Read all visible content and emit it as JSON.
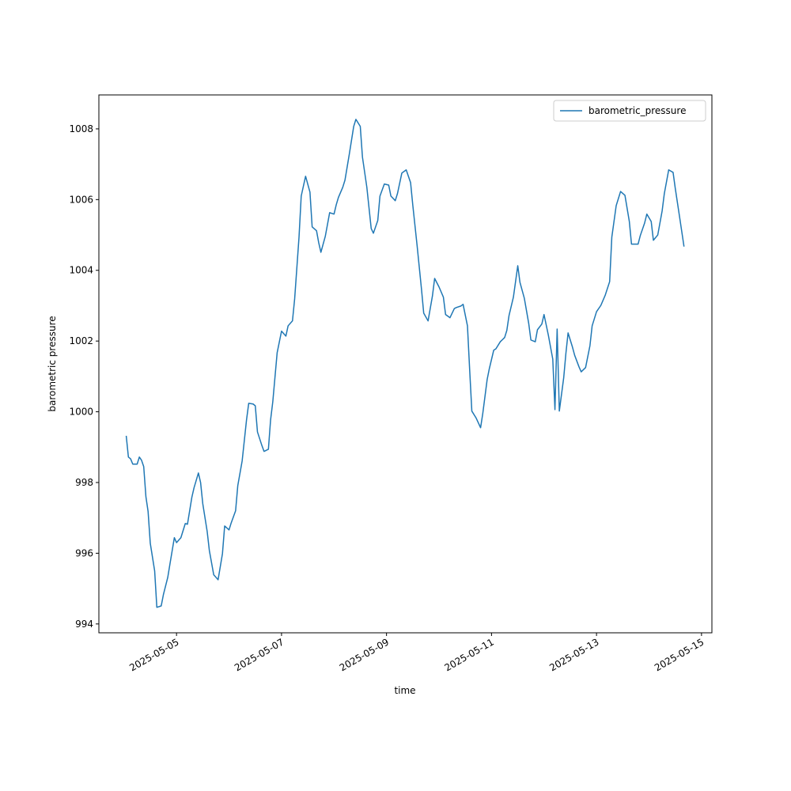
{
  "chart_data": {
    "type": "line",
    "x_label": "time",
    "y_label": "barometric pressure",
    "x": [
      "2025-05-04T01:00",
      "2025-05-04T02:00",
      "2025-05-04T03:00",
      "2025-05-04T04:00",
      "2025-05-04T06:00",
      "2025-05-04T07:00",
      "2025-05-04T08:00",
      "2025-05-04T09:00",
      "2025-05-04T10:00",
      "2025-05-04T11:00",
      "2025-05-04T12:00",
      "2025-05-04T14:00",
      "2025-05-04T15:00",
      "2025-05-04T17:00",
      "2025-05-04T18:00",
      "2025-05-04T20:00",
      "2025-05-04T21:00",
      "2025-05-04T23:00",
      "2025-05-05T00:00",
      "2025-05-05T02:00",
      "2025-05-05T04:00",
      "2025-05-05T05:00",
      "2025-05-05T07:00",
      "2025-05-05T08:00",
      "2025-05-05T10:00",
      "2025-05-05T11:00",
      "2025-05-05T12:00",
      "2025-05-05T14:00",
      "2025-05-05T15:00",
      "2025-05-05T17:00",
      "2025-05-05T19:00",
      "2025-05-05T21:00",
      "2025-05-05T22:00",
      "2025-05-06T00:00",
      "2025-05-06T01:00",
      "2025-05-06T03:00",
      "2025-05-06T04:00",
      "2025-05-06T06:00",
      "2025-05-06T08:00",
      "2025-05-06T09:00",
      "2025-05-06T11:00",
      "2025-05-06T12:00",
      "2025-05-06T13:00",
      "2025-05-06T15:00",
      "2025-05-06T16:00",
      "2025-05-06T18:00",
      "2025-05-06T19:00",
      "2025-05-06T20:00",
      "2025-05-06T22:00",
      "2025-05-07T00:00",
      "2025-05-07T02:00",
      "2025-05-07T03:00",
      "2025-05-07T05:00",
      "2025-05-07T06:00",
      "2025-05-07T08:00",
      "2025-05-07T09:00",
      "2025-05-07T11:00",
      "2025-05-07T13:00",
      "2025-05-07T14:00",
      "2025-05-07T16:00",
      "2025-05-07T17:00",
      "2025-05-07T18:00",
      "2025-05-07T20:00",
      "2025-05-07T22:00",
      "2025-05-08T00:00",
      "2025-05-08T01:00",
      "2025-05-08T02:00",
      "2025-05-08T04:00",
      "2025-05-08T05:00",
      "2025-05-08T07:00",
      "2025-05-08T09:00",
      "2025-05-08T10:00",
      "2025-05-08T12:00",
      "2025-05-08T13:00",
      "2025-05-08T15:00",
      "2025-05-08T17:00",
      "2025-05-08T18:00",
      "2025-05-08T20:00",
      "2025-05-08T21:00",
      "2025-05-08T23:00",
      "2025-05-09T01:00",
      "2025-05-09T02:00",
      "2025-05-09T04:00",
      "2025-05-09T05:00",
      "2025-05-09T07:00",
      "2025-05-09T09:00",
      "2025-05-09T11:00",
      "2025-05-09T12:00",
      "2025-05-09T14:00",
      "2025-05-09T16:00",
      "2025-05-09T17:00",
      "2025-05-09T19:00",
      "2025-05-09T21:00",
      "2025-05-09T22:00",
      "2025-05-10T00:00",
      "2025-05-10T02:00",
      "2025-05-10T03:00",
      "2025-05-10T05:00",
      "2025-05-10T07:00",
      "2025-05-10T08:00",
      "2025-05-10T10:00",
      "2025-05-10T11:00",
      "2025-05-10T13:00",
      "2025-05-10T14:00",
      "2025-05-10T15:00",
      "2025-05-10T17:00",
      "2025-05-10T19:00",
      "2025-05-10T20:00",
      "2025-05-10T22:00",
      "2025-05-10T23:00",
      "2025-05-11T01:00",
      "2025-05-11T02:00",
      "2025-05-11T04:00",
      "2025-05-11T06:00",
      "2025-05-11T07:00",
      "2025-05-11T08:00",
      "2025-05-11T10:00",
      "2025-05-11T12:00",
      "2025-05-11T13:00",
      "2025-05-11T15:00",
      "2025-05-11T17:00",
      "2025-05-11T18:00",
      "2025-05-11T20:00",
      "2025-05-11T21:00",
      "2025-05-11T23:00",
      "2025-05-12T00:00",
      "2025-05-12T02:00",
      "2025-05-12T04:00",
      "2025-05-12T05:00",
      "2025-05-12T06:00",
      "2025-05-12T07:00",
      "2025-05-12T09:00",
      "2025-05-12T10:00",
      "2025-05-12T11:00",
      "2025-05-12T13:00",
      "2025-05-12T14:00",
      "2025-05-12T16:00",
      "2025-05-12T17:00",
      "2025-05-12T19:00",
      "2025-05-12T21:00",
      "2025-05-12T22:00",
      "2025-05-13T00:00",
      "2025-05-13T02:00",
      "2025-05-13T04:00",
      "2025-05-13T06:00",
      "2025-05-13T07:00",
      "2025-05-13T09:00",
      "2025-05-13T11:00",
      "2025-05-13T13:00",
      "2025-05-13T15:00",
      "2025-05-13T16:00",
      "2025-05-13T17:00",
      "2025-05-13T19:00",
      "2025-05-13T20:00",
      "2025-05-13T22:00",
      "2025-05-13T23:00",
      "2025-05-14T01:00",
      "2025-05-14T02:00",
      "2025-05-14T04:00",
      "2025-05-14T06:00",
      "2025-05-14T07:00",
      "2025-05-14T09:00",
      "2025-05-14T11:00",
      "2025-05-14T12:00",
      "2025-05-14T14:00",
      "2025-05-14T16:00"
    ],
    "series": [
      {
        "name": "barometric_pressure",
        "color": "#1f77b4",
        "values": [
          999.32,
          998.72,
          998.67,
          998.52,
          998.52,
          998.72,
          998.63,
          998.45,
          997.6,
          997.18,
          996.28,
          995.5,
          994.47,
          994.51,
          994.83,
          995.32,
          995.7,
          996.44,
          996.3,
          996.44,
          996.84,
          996.82,
          997.58,
          997.85,
          998.27,
          998.0,
          997.4,
          996.62,
          996.08,
          995.39,
          995.25,
          995.99,
          996.77,
          996.66,
          996.86,
          997.2,
          997.91,
          998.61,
          999.77,
          1000.24,
          1000.22,
          1000.17,
          999.43,
          999.05,
          998.88,
          998.94,
          999.77,
          1000.28,
          1001.67,
          1002.28,
          1002.14,
          1002.43,
          1002.57,
          1003.19,
          1004.94,
          1006.1,
          1006.66,
          1006.21,
          1005.23,
          1005.12,
          1004.78,
          1004.51,
          1004.96,
          1005.63,
          1005.59,
          1005.85,
          1006.06,
          1006.35,
          1006.55,
          1007.29,
          1008.07,
          1008.27,
          1008.07,
          1007.2,
          1006.35,
          1005.18,
          1005.05,
          1005.41,
          1006.1,
          1006.44,
          1006.41,
          1006.1,
          1005.97,
          1006.17,
          1006.75,
          1006.84,
          1006.48,
          1005.85,
          1004.69,
          1003.46,
          1002.79,
          1002.57,
          1003.28,
          1003.77,
          1003.53,
          1003.24,
          1002.75,
          1002.66,
          1002.92,
          1002.95,
          1002.99,
          1003.04,
          1002.43,
          1001.2,
          1000.02,
          999.82,
          999.55,
          999.95,
          1000.91,
          1001.22,
          1001.74,
          1001.78,
          1001.98,
          1002.1,
          1002.3,
          1002.72,
          1003.24,
          1004.13,
          1003.66,
          1003.21,
          1002.5,
          1002.03,
          1001.98,
          1002.32,
          1002.48,
          1002.75,
          1002.16,
          1001.49,
          1000.06,
          1002.34,
          1000.02,
          1000.96,
          1001.65,
          1002.23,
          1001.83,
          1001.6,
          1001.27,
          1001.13,
          1001.25,
          1001.87,
          1002.43,
          1002.83,
          1003.01,
          1003.3,
          1003.68,
          1004.94,
          1005.83,
          1006.23,
          1006.12,
          1005.38,
          1004.74,
          1004.74,
          1004.74,
          1004.98,
          1005.34,
          1005.59,
          1005.38,
          1004.85,
          1005.0,
          1005.68,
          1006.17,
          1006.84,
          1006.77,
          1006.32,
          1005.5,
          1004.67
        ]
      }
    ],
    "xlim": [
      "2025-05-03T12:30",
      "2025-05-15T04:45"
    ],
    "xticks": [
      "2025-05-05",
      "2025-05-07",
      "2025-05-09",
      "2025-05-11",
      "2025-05-13",
      "2025-05-15"
    ],
    "ylim": [
      993.75,
      1008.96
    ],
    "yticks": [
      994,
      996,
      998,
      1000,
      1002,
      1004,
      1006,
      1008
    ],
    "legend": "upper right",
    "grid": false
  }
}
